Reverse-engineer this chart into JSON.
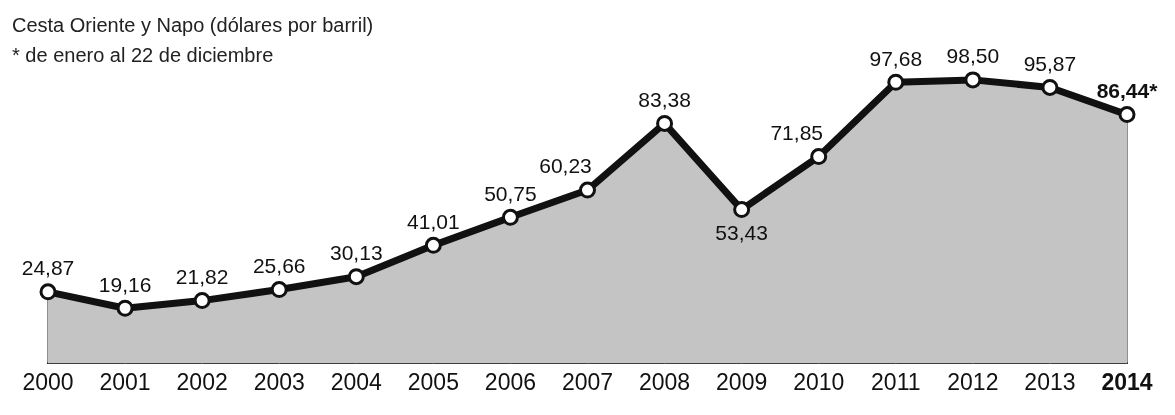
{
  "chart_data": {
    "type": "area",
    "title": "Cesta Oriente y Napo (dólares por barril)",
    "subtitle": "* de enero al 22 de diciembre",
    "categories": [
      "2000",
      "2001",
      "2002",
      "2003",
      "2004",
      "2005",
      "2006",
      "2007",
      "2008",
      "2009",
      "2010",
      "2011",
      "2012",
      "2013",
      "2014"
    ],
    "series": [
      {
        "color": "#111111",
        "values": [
          24.87,
          19.16,
          21.82,
          25.66,
          30.13,
          41.01,
          50.75,
          60.23,
          83.38,
          53.43,
          71.85,
          97.68,
          98.5,
          95.87,
          86.44
        ],
        "value_labels": [
          "24,87",
          "19,16",
          "21,82",
          "25,66",
          "30,13",
          "41,01",
          "50,75",
          "60,23",
          "83,38",
          "53,43",
          "71,85",
          "97,68",
          "98,50",
          "95,87",
          "86,44*"
        ]
      }
    ],
    "grid": "x",
    "legend": false,
    "marker": "circle",
    "line_style": "solid",
    "tick_labels": "x"
  }
}
